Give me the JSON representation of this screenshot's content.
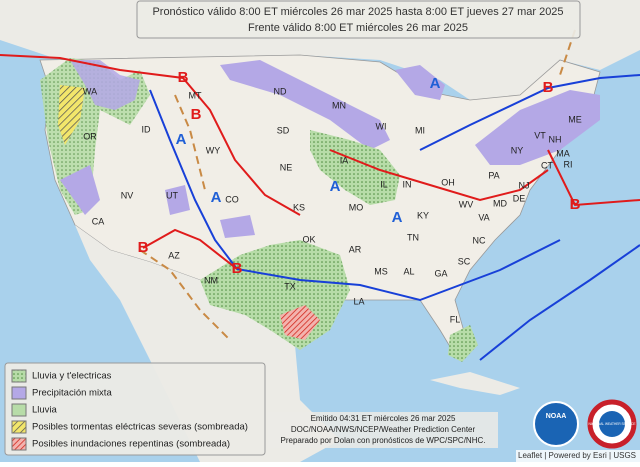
{
  "header": {
    "line1": "Pronóstico válido 8:00 ET miércoles 26 mar 2025 hasta 8:00 ET jueves 27 mar 2025",
    "line2": "Frente válido 8:00 ET miércoles 26 mar 2025"
  },
  "legend": {
    "items": [
      "Lluvia y t'electricas",
      "Precipitación mixta",
      "Lluvia",
      "Posibles tormentas eléctricas severas (sombreada)",
      "Posibles inundaciones repentinas (sombreada)"
    ]
  },
  "footer": {
    "issued": "Emitido 04:31 ET miércoles 26 mar 2025",
    "agency": "DOC/NOAA/NWS/NCEP/Weather Prediction Center",
    "prepared": "Preparado por Dolan con pronósticos de WPC/SPC/NHC."
  },
  "attribution": "Leaflet | Powered by Esri | USGS",
  "logos": {
    "noaa": "NOAA",
    "nws": "NATIONAL WEATHER SERVICE"
  },
  "states": [
    "WA",
    "OR",
    "CA",
    "NV",
    "ID",
    "MT",
    "WY",
    "UT",
    "AZ",
    "CO",
    "NM",
    "ND",
    "SD",
    "NE",
    "KS",
    "OK",
    "TX",
    "MN",
    "IA",
    "MO",
    "AR",
    "LA",
    "WI",
    "IL",
    "MI",
    "IN",
    "OH",
    "KY",
    "TN",
    "MS",
    "AL",
    "GA",
    "FL",
    "SC",
    "NC",
    "VA",
    "WV",
    "PA",
    "NY",
    "VT",
    "NH",
    "ME",
    "MA",
    "CT",
    "RI",
    "NJ",
    "DE",
    "MD"
  ],
  "pressure_centers": [
    "B",
    "B",
    "B",
    "B",
    "B",
    "B",
    "A",
    "A",
    "A",
    "A",
    "A"
  ]
}
